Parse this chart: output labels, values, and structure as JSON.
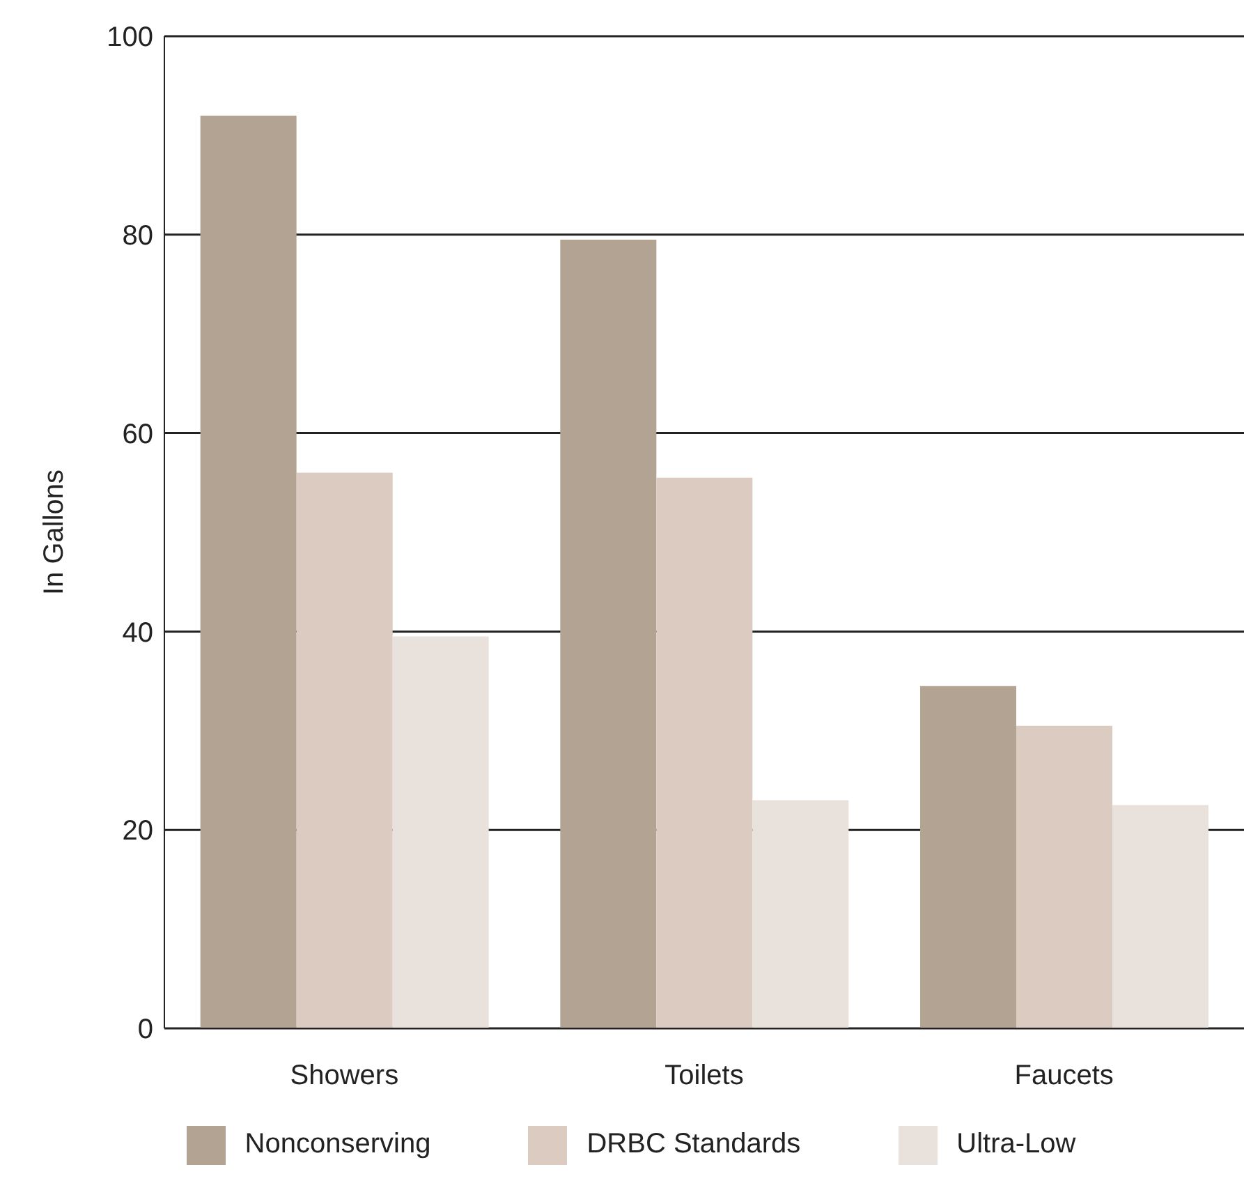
{
  "chart_data": {
    "type": "bar",
    "ylabel": "In Gallons",
    "categories": [
      "Showers",
      "Toilets",
      "Faucets"
    ],
    "series": [
      {
        "name": "Nonconserving",
        "color": "#b3a393",
        "values": [
          92,
          79.5,
          34.5
        ]
      },
      {
        "name": "DRBC Standards",
        "color": "#dbcbc1",
        "values": [
          56,
          55.5,
          30.5
        ]
      },
      {
        "name": "Ultra-Low",
        "color": "#e9e1db",
        "values": [
          39.5,
          23,
          22.5
        ]
      }
    ],
    "ylim": [
      0,
      100
    ],
    "yticks": [
      0,
      20,
      40,
      60,
      80,
      100
    ],
    "grid": "y",
    "legend": "bottom"
  }
}
